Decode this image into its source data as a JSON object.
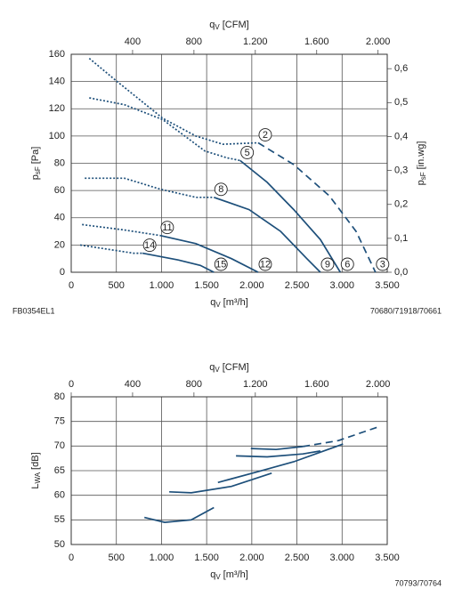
{
  "chart_data": [
    {
      "type": "line",
      "x_label": {
        "text": "q",
        "sub": "V",
        "unit": "[m³/h]"
      },
      "x2_label": {
        "text": "q",
        "sub": "V",
        "unit": "[CFM]"
      },
      "y_label": {
        "text": "p",
        "sub": "sF",
        "unit": "[Pa]"
      },
      "y2_label": {
        "text": "p",
        "sub": "sF",
        "unit": "[in.wg]"
      },
      "footnote_left": "FB0354EL1",
      "footnote_right": "70680/71918/70661",
      "xlim": [
        0,
        3500
      ],
      "xticks": [
        0,
        500,
        {
          "value": 1000,
          "label": "1.000"
        },
        {
          "value": 1500,
          "label": "1.500"
        },
        {
          "value": 2000,
          "label": "2.000"
        },
        {
          "value": 2500,
          "label": "2.500"
        },
        {
          "value": 3000,
          "label": "3.000"
        },
        {
          "value": 3500,
          "label": "3.500"
        }
      ],
      "x2lim": [
        0,
        2060
      ],
      "x2ticks": [
        400,
        800,
        {
          "value": 1200,
          "label": "1.200"
        },
        {
          "value": 1600,
          "label": "1.600"
        },
        {
          "value": 2000,
          "label": "2.000"
        }
      ],
      "ylim": [
        0,
        160
      ],
      "yticks": [
        0,
        20,
        40,
        60,
        80,
        100,
        120,
        140,
        160
      ],
      "y2lim": [
        0,
        0.6425
      ],
      "y2ticks": [
        {
          "value": 0,
          "label": "0,0"
        },
        {
          "value": 0.1,
          "label": "0,1"
        },
        {
          "value": 0.2,
          "label": "0,2"
        },
        {
          "value": 0.3,
          "label": "0,3"
        },
        {
          "value": 0.4,
          "label": "0,4"
        },
        {
          "value": 0.5,
          "label": "0,5"
        },
        {
          "value": 0.6,
          "label": "0,6"
        }
      ],
      "grid": true,
      "color": "#1d4f7a",
      "series": [
        {
          "labels": [
            "2",
            "3"
          ],
          "segments": [
            {
              "style": "dotted",
              "x": [
                200,
                490,
                1015,
                1380,
                1680,
                2070
              ],
              "values": [
                157,
                141,
                113,
                100,
                94,
                95
              ]
            },
            {
              "style": "dashed",
              "x": [
                2070,
                2465,
                2860,
                3155,
                3370
              ],
              "values": [
                95,
                79,
                56,
                30,
                0
              ]
            }
          ]
        },
        {
          "labels": [
            "5",
            "6"
          ],
          "segments": [
            {
              "style": "dotted",
              "x": [
                200,
                590,
                1015,
                1480,
                1725,
                1870
              ],
              "values": [
                128,
                123,
                112,
                89,
                84,
                82
              ]
            },
            {
              "style": "solid",
              "x": [
                1870,
                2170,
                2465,
                2760,
                2980
              ],
              "values": [
                82,
                66,
                46,
                24,
                0
              ]
            }
          ]
        },
        {
          "labels": [
            "8",
            "9"
          ],
          "segments": [
            {
              "style": "dotted",
              "x": [
                150,
                590,
                985,
                1380,
                1580
              ],
              "values": [
                69,
                69,
                61,
                55,
                55
              ]
            },
            {
              "style": "solid",
              "x": [
                1580,
                1970,
                2320,
                2610,
                2760
              ],
              "values": [
                55,
                46,
                30,
                10,
                0
              ]
            }
          ]
        },
        {
          "labels": [
            "11",
            "12"
          ],
          "segments": [
            {
              "style": "dotted",
              "x": [
                120,
                590,
                985
              ],
              "values": [
                35,
                31,
                27
              ]
            },
            {
              "style": "solid",
              "x": [
                985,
                1380,
                1775,
                2070
              ],
              "values": [
                27,
                21,
                10,
                0
              ]
            }
          ]
        },
        {
          "labels": [
            "14",
            "15"
          ],
          "segments": [
            {
              "style": "dotted",
              "x": [
                100,
                395,
                690,
                790
              ],
              "values": [
                20,
                17,
                14,
                14
              ]
            },
            {
              "style": "solid",
              "x": [
                790,
                1185,
                1430,
                1580
              ],
              "values": [
                14,
                9,
                5,
                0
              ]
            }
          ]
        }
      ]
    },
    {
      "type": "line",
      "x_label": {
        "text": "q",
        "sub": "V",
        "unit": "[m³/h]"
      },
      "x2_label": {
        "text": "q",
        "sub": "V",
        "unit": "[CFM]"
      },
      "y_label": {
        "text": "L",
        "sub": "WA",
        "unit": "[dB]"
      },
      "footnote_right": "70793/70764",
      "xlim": [
        0,
        3500
      ],
      "xticks": [
        0,
        500,
        {
          "value": 1000,
          "label": "1.000"
        },
        {
          "value": 1500,
          "label": "1.500"
        },
        {
          "value": 2000,
          "label": "2.000"
        },
        {
          "value": 2500,
          "label": "2.500"
        },
        {
          "value": 3000,
          "label": "3.000"
        },
        {
          "value": 3500,
          "label": "3.500"
        }
      ],
      "x2lim": [
        0,
        2060
      ],
      "x2ticks": [
        0,
        400,
        800,
        {
          "value": 1200,
          "label": "1.200"
        },
        {
          "value": 1600,
          "label": "1.600"
        },
        {
          "value": 2000,
          "label": "2.000"
        }
      ],
      "ylim": [
        50,
        80
      ],
      "yticks": [
        50,
        55,
        60,
        65,
        70,
        75,
        80
      ],
      "grid": true,
      "color": "#1d4f7a",
      "series": [
        {
          "segments": [
            {
              "style": "solid",
              "x": [
                810,
                1035,
                1330,
                1580
              ],
              "values": [
                55.5,
                54.5,
                55,
                57.5
              ]
            }
          ]
        },
        {
          "segments": [
            {
              "style": "solid",
              "x": [
                1085,
                1330,
                1775,
                2220
              ],
              "values": [
                60.7,
                60.5,
                61.8,
                64.5
              ]
            }
          ]
        },
        {
          "segments": [
            {
              "style": "solid",
              "x": [
                1625,
                2070,
                2465,
                3010
              ],
              "values": [
                62.6,
                64.8,
                66.8,
                70.4
              ]
            }
          ]
        },
        {
          "segments": [
            {
              "style": "solid",
              "x": [
                1825,
                2170,
                2565,
                2760
              ],
              "values": [
                68,
                67.8,
                68.4,
                69
              ]
            }
          ]
        },
        {
          "segments": [
            {
              "style": "solid",
              "x": [
                1990,
                2270,
                2565
              ],
              "values": [
                69.5,
                69.3,
                69.9
              ]
            },
            {
              "style": "dashed",
              "x": [
                2565,
                2960,
                3400
              ],
              "values": [
                69.9,
                71.1,
                73.9
              ]
            }
          ]
        }
      ]
    }
  ]
}
